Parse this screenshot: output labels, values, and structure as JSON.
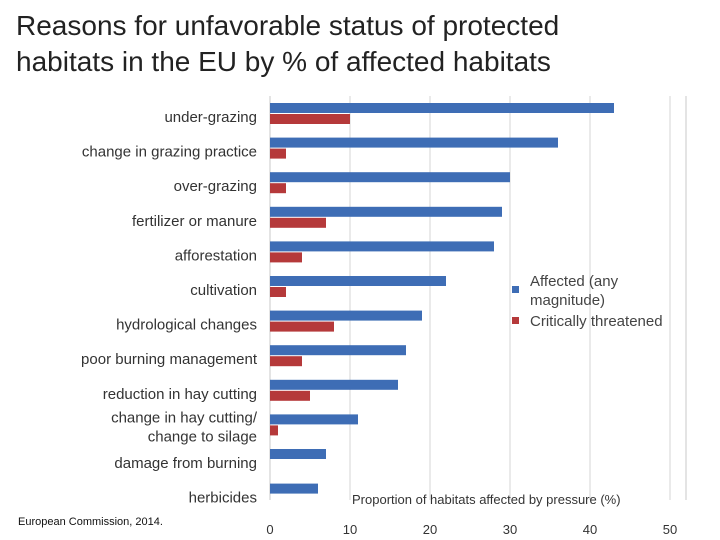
{
  "title_line1": "Reasons for unfavorable status of protected",
  "title_line2": "habitats in the EU by % of affected habitats",
  "source": "European Commission, 2014.",
  "chart_data": {
    "type": "bar",
    "orientation": "horizontal",
    "title": "Reasons for unfavorable status of protected habitats in the EU by % of affected habitats",
    "xlabel": "Proportion of habitats affected by pressure (%)",
    "ylabel": "",
    "xlim": [
      0,
      52
    ],
    "xticks": [
      0,
      10,
      20,
      30,
      40,
      50
    ],
    "categories": [
      "under-grazing",
      "change in grazing practice",
      "over-grazing",
      "fertilizer or manure",
      "afforestation",
      "cultivation",
      "hydrological changes",
      "poor burning management",
      "reduction in hay cutting",
      "change in hay cutting/ change to silage",
      "damage from burning",
      "herbicides"
    ],
    "series": [
      {
        "name": "Affected (any magnitude)",
        "color": "#3e6db5",
        "values": [
          43,
          36,
          30,
          29,
          28,
          22,
          19,
          17,
          16,
          11,
          7,
          6
        ]
      },
      {
        "name": "Critically threatened",
        "color": "#b5393a",
        "values": [
          10,
          2,
          2,
          7,
          4,
          2,
          8,
          4,
          5,
          1,
          0,
          0
        ]
      }
    ],
    "legend_position": "right",
    "grid": true
  }
}
